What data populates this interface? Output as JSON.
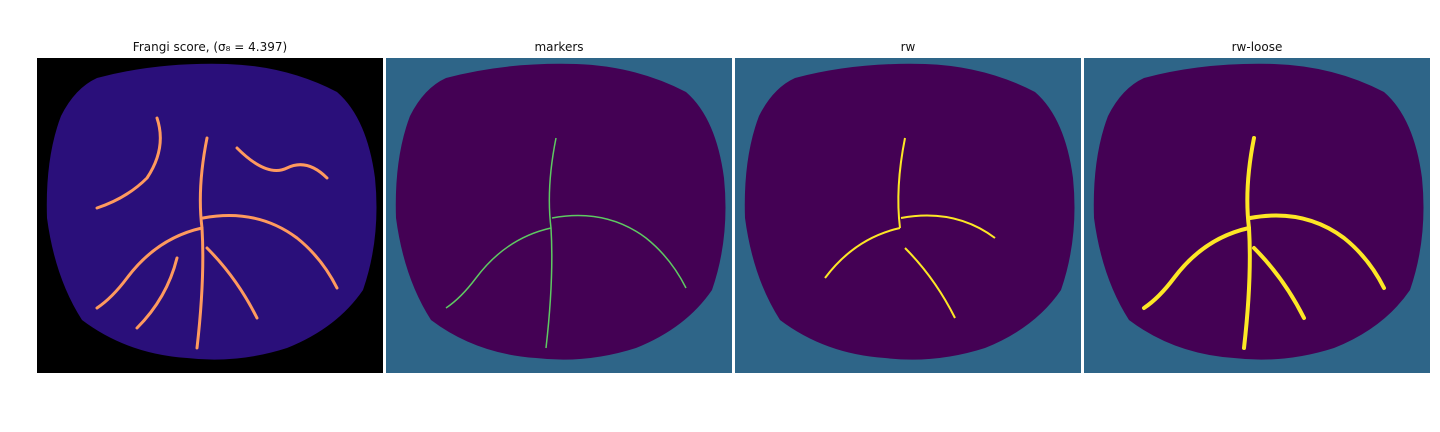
{
  "figure": {
    "panels": [
      {
        "id": "frangi",
        "title": "Frangi score, (σ₈ = 4.397)",
        "colormap": "magma",
        "background": "#000000",
        "foreground": "#2a0f7a",
        "highlight": "#ff9a5e"
      },
      {
        "id": "markers",
        "title": "markers",
        "colormap": "viridis",
        "background": "#2e6588",
        "foreground": "#440154",
        "highlight": "#5ec962"
      },
      {
        "id": "rw",
        "title": "rw",
        "colormap": "viridis",
        "background": "#2e6588",
        "foreground": "#440154",
        "highlight": "#fde725"
      },
      {
        "id": "rw-loose",
        "title": "rw-loose",
        "colormap": "viridis",
        "background": "#2e6588",
        "foreground": "#440154",
        "highlight": "#fde725"
      }
    ]
  }
}
